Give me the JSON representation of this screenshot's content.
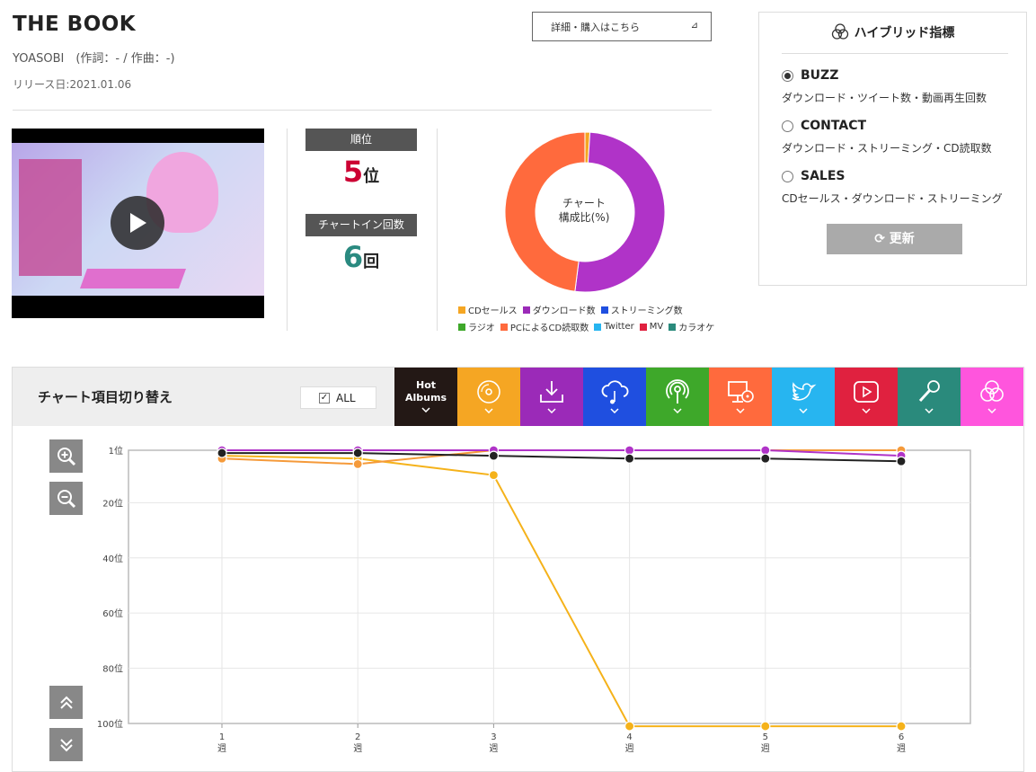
{
  "song": {
    "title": "THE BOOK",
    "artist_line": "YOASOBI　(作詞：- / 作曲：-)",
    "release": "リリース日:2021.01.06"
  },
  "detail_button": {
    "label": "詳細・購入はこちら",
    "icon": "arrow-icon"
  },
  "stats": {
    "rank_label": "順位",
    "rank_value": "5",
    "rank_unit": "位",
    "chartin_label": "チャートイン回数",
    "chartin_value": "6",
    "chartin_unit": "回",
    "rank_color": "#cc0033",
    "chartin_color": "#2a8a80"
  },
  "donut": {
    "center_line1": "チャート",
    "center_line2": "構成比(%)",
    "segments": [
      {
        "name": "CDセールス",
        "value": 1,
        "color": "#f5a623"
      },
      {
        "name": "ダウンロード数",
        "value": 51,
        "color": "#b033c8"
      },
      {
        "name": "PCによるCD読取数",
        "value": 48,
        "color": "#ff6a3d"
      }
    ],
    "legend": [
      [
        {
          "name": "CDセールス",
          "color": "#f5a623"
        },
        {
          "name": "ダウンロード数",
          "color": "#9b2ab8"
        },
        {
          "name": "ストリーミング数",
          "color": "#1f4fe0"
        }
      ],
      [
        {
          "name": "ラジオ",
          "color": "#3ea82a"
        },
        {
          "name": "PCによるCD読取数",
          "color": "#ff6a3d"
        },
        {
          "name": "Twitter",
          "color": "#27b5f0"
        },
        {
          "name": "MV",
          "color": "#e0213f"
        },
        {
          "name": "カラオケ",
          "color": "#2a8a7c"
        }
      ]
    ]
  },
  "hybrid": {
    "title": "ハイブリッド指標",
    "options": [
      {
        "label": "BUZZ",
        "desc": "ダウンロード・ツイート数・動画再生回数",
        "selected": true
      },
      {
        "label": "CONTACT",
        "desc": "ダウンロード・ストリーミング・CD読取数",
        "selected": false
      },
      {
        "label": "SALES",
        "desc": "CDセールス・ダウンロード・ストリーミング",
        "selected": false
      }
    ],
    "update_label": "更新"
  },
  "chart_switch": {
    "label": "チャート項目切り替え",
    "all_label": "ALL",
    "all_checked": true,
    "categories": [
      {
        "name": "hot-albums",
        "label_line1": "Hot",
        "label_line2": "Albums",
        "color": "#231815"
      },
      {
        "name": "cd-sales",
        "icon": "disc-icon",
        "color": "#f5a623"
      },
      {
        "name": "download",
        "icon": "download-icon",
        "color": "#9b2ab8"
      },
      {
        "name": "streaming",
        "icon": "cloud-music-icon",
        "color": "#1f4fe0"
      },
      {
        "name": "radio",
        "icon": "radio-icon",
        "color": "#3ea82a"
      },
      {
        "name": "pc-cd-read",
        "icon": "pc-disc-icon",
        "color": "#ff6a3d"
      },
      {
        "name": "twitter",
        "icon": "twitter-icon",
        "color": "#27b5f0"
      },
      {
        "name": "mv",
        "icon": "play-icon",
        "color": "#e0213f"
      },
      {
        "name": "karaoke",
        "icon": "mic-icon",
        "color": "#2a8a7c"
      },
      {
        "name": "hybrid",
        "icon": "venn-icon",
        "color": "#ff55dd"
      }
    ]
  },
  "chart_data": {
    "type": "line",
    "x": [
      1,
      2,
      3,
      4,
      5,
      6
    ],
    "x_unit": "週",
    "ylim": [
      100,
      1
    ],
    "yticks": [
      1,
      20,
      40,
      60,
      80,
      100
    ],
    "y_unit": "位",
    "series": [
      {
        "name": "CDセールス",
        "color": "#f5b21a",
        "values": [
          3,
          4,
          10,
          101,
          101,
          101
        ]
      },
      {
        "name": "PCによるCD読取数",
        "color": "#f59a3a",
        "values": [
          4,
          6,
          1,
          1,
          1,
          1
        ]
      },
      {
        "name": "ダウンロード数",
        "color": "#b033c8",
        "values": [
          1,
          1,
          1,
          1,
          1,
          3
        ]
      },
      {
        "name": "Hot Albums",
        "color": "#222222",
        "values": [
          2,
          2,
          3,
          4,
          4,
          5
        ]
      }
    ]
  }
}
